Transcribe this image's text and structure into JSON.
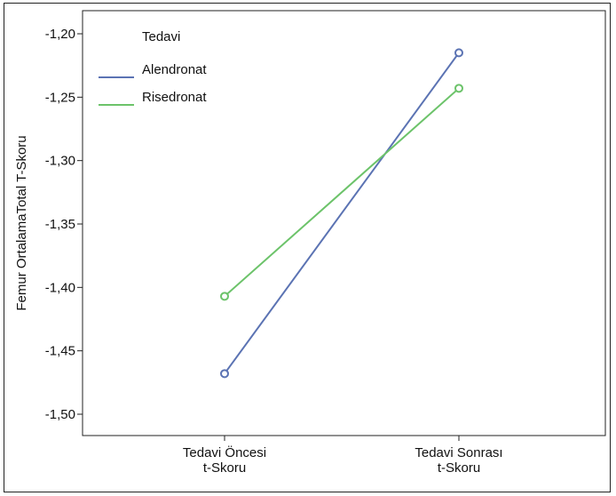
{
  "chart_data": {
    "type": "line",
    "title": "",
    "xlabel": "",
    "ylabel": "Femur OrtalamaTotal T-Skoru",
    "ylim": [
      -1.51,
      -1.19
    ],
    "yticks": [
      -1.2,
      -1.25,
      -1.3,
      -1.35,
      -1.4,
      -1.45,
      -1.5
    ],
    "ytick_labels": [
      "-1,20",
      "-1,25",
      "-1,30",
      "-1,35",
      "-1,40",
      "-1,45",
      "-1,50"
    ],
    "categories": [
      [
        "Tedavi Öncesi",
        "t-Skoru"
      ],
      [
        "Tedavi Sonrası",
        "t-Skoru"
      ]
    ],
    "legend": {
      "title": "Tedavi",
      "position": "top-left"
    },
    "grid": false,
    "series": [
      {
        "name": "Alendronat",
        "color": "#5b73b3",
        "values": [
          -1.468,
          -1.215
        ]
      },
      {
        "name": "Risedronat",
        "color": "#6cc36a",
        "values": [
          -1.407,
          -1.243
        ]
      }
    ]
  }
}
